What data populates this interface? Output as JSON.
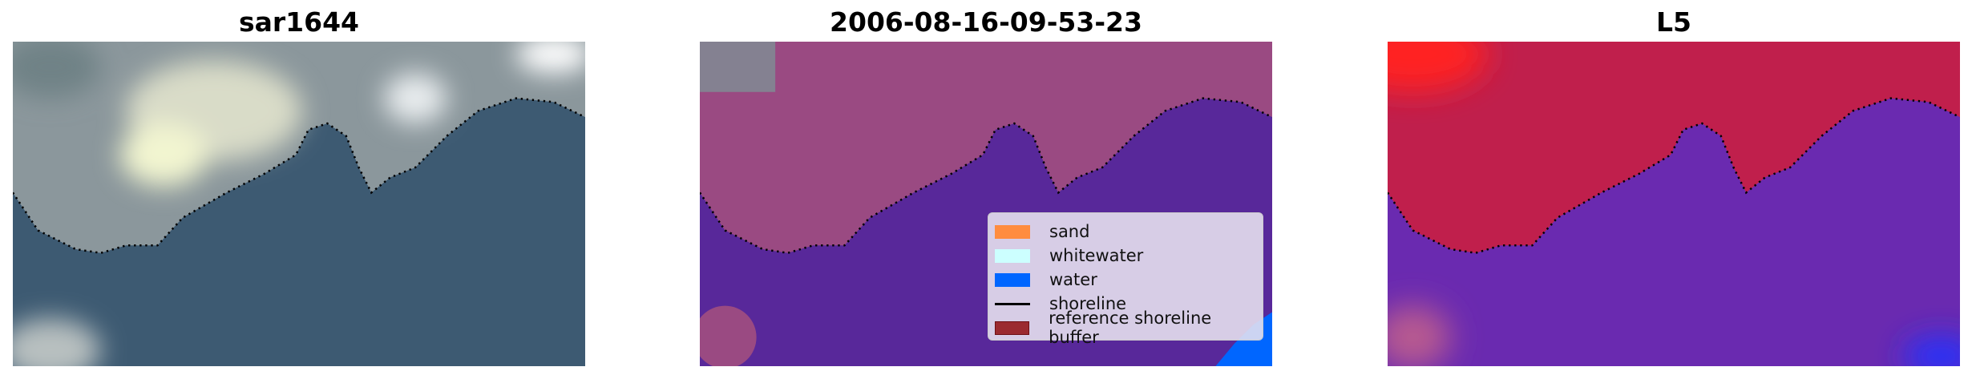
{
  "panels": [
    {
      "title": "sar1644",
      "image": "true-colour satellite image",
      "colors": {
        "land": "#9aa3a8",
        "water": "#3d5a72"
      }
    },
    {
      "title": "2006-08-16-09-53-23",
      "image": "classified image",
      "colors": {
        "land": "#9a4a82",
        "water": "#58289a"
      }
    },
    {
      "title": "L5",
      "image": "index image",
      "colors": {
        "land": "#c01f4c",
        "water": "#6a2ab0"
      }
    }
  ],
  "legend": {
    "items": [
      {
        "label": "sand",
        "color": "#ff8c3f",
        "kind": "patch"
      },
      {
        "label": "whitewater",
        "color": "#ccffff",
        "kind": "patch"
      },
      {
        "label": "water",
        "color": "#0066ff",
        "kind": "patch"
      },
      {
        "label": "shoreline",
        "color": "#000000",
        "kind": "line"
      },
      {
        "label": "reference shoreline buffer",
        "color": "#9b2a30",
        "kind": "patch"
      }
    ]
  }
}
